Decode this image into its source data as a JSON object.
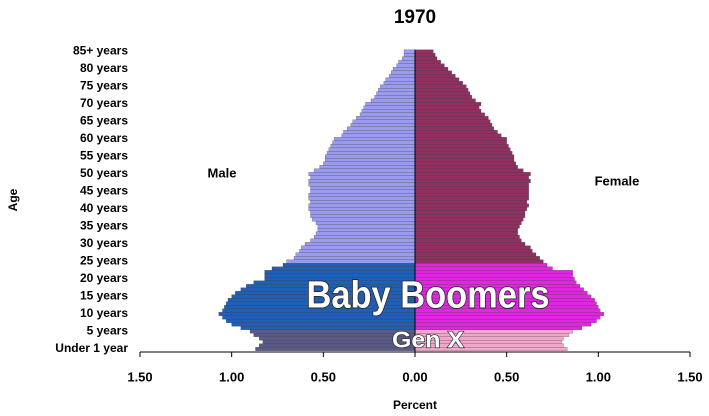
{
  "chart_data": {
    "type": "pyramid",
    "title": "1970",
    "x_label": "Percent",
    "y_label": "Age",
    "categories": [
      "Under 1 year",
      null,
      null,
      null,
      null,
      "5 years",
      null,
      null,
      null,
      null,
      "10 years",
      null,
      null,
      null,
      null,
      "15 years",
      null,
      null,
      null,
      null,
      "20 years",
      null,
      null,
      null,
      null,
      "25 years",
      null,
      null,
      null,
      null,
      "30 years",
      null,
      null,
      null,
      null,
      "35 years",
      null,
      null,
      null,
      null,
      "40 years",
      null,
      null,
      null,
      null,
      "45 years",
      null,
      null,
      null,
      null,
      "50 years",
      null,
      null,
      null,
      null,
      "55 years",
      null,
      null,
      null,
      null,
      "60 years",
      null,
      null,
      null,
      null,
      "65 years",
      null,
      null,
      null,
      null,
      "70 years",
      null,
      null,
      null,
      null,
      "75 years",
      null,
      null,
      null,
      null,
      "80 years",
      null,
      null,
      null,
      null,
      "85+ years"
    ],
    "series": [
      {
        "name": "Male",
        "side": "left",
        "color": "#9a9aee",
        "values": [
          0.87,
          0.85,
          0.83,
          0.85,
          0.88,
          0.9,
          0.95,
          1.0,
          1.03,
          1.05,
          1.07,
          1.05,
          1.04,
          1.03,
          1.02,
          1.0,
          0.98,
          0.95,
          0.92,
          0.88,
          0.82,
          0.82,
          0.82,
          0.78,
          0.72,
          0.7,
          0.66,
          0.65,
          0.63,
          0.62,
          0.6,
          0.57,
          0.55,
          0.54,
          0.53,
          0.53,
          0.54,
          0.56,
          0.57,
          0.57,
          0.58,
          0.58,
          0.57,
          0.58,
          0.58,
          0.57,
          0.57,
          0.58,
          0.58,
          0.57,
          0.58,
          0.55,
          0.52,
          0.5,
          0.49,
          0.49,
          0.48,
          0.47,
          0.46,
          0.45,
          0.44,
          0.4,
          0.39,
          0.37,
          0.35,
          0.34,
          0.32,
          0.3,
          0.29,
          0.28,
          0.27,
          0.24,
          0.22,
          0.21,
          0.2,
          0.19,
          0.17,
          0.16,
          0.14,
          0.13,
          0.12,
          0.1,
          0.09,
          0.07,
          0.06,
          0.06
        ]
      },
      {
        "name": "Female",
        "side": "right",
        "color": "#903060",
        "values": [
          0.83,
          0.81,
          0.8,
          0.81,
          0.84,
          0.86,
          0.91,
          0.96,
          0.99,
          1.01,
          1.03,
          1.01,
          1.0,
          0.99,
          0.98,
          0.96,
          0.94,
          0.92,
          0.9,
          0.88,
          0.87,
          0.86,
          0.86,
          0.75,
          0.72,
          0.7,
          0.68,
          0.66,
          0.64,
          0.63,
          0.6,
          0.58,
          0.57,
          0.56,
          0.56,
          0.57,
          0.58,
          0.59,
          0.6,
          0.6,
          0.61,
          0.62,
          0.61,
          0.62,
          0.62,
          0.62,
          0.62,
          0.62,
          0.63,
          0.62,
          0.63,
          0.59,
          0.56,
          0.55,
          0.54,
          0.54,
          0.53,
          0.52,
          0.51,
          0.5,
          0.5,
          0.47,
          0.45,
          0.43,
          0.42,
          0.41,
          0.4,
          0.38,
          0.36,
          0.35,
          0.36,
          0.33,
          0.31,
          0.3,
          0.29,
          0.28,
          0.26,
          0.24,
          0.22,
          0.2,
          0.18,
          0.16,
          0.14,
          0.12,
          0.11,
          0.1
        ]
      }
    ],
    "generations": [
      {
        "text": "Gen X",
        "start": 0,
        "end": 5,
        "colors": [
          "#5a5a86",
          "#f2a6cc"
        ],
        "size": "small"
      },
      {
        "text": "Baby Boomers",
        "start": 6,
        "end": 24,
        "colors": [
          "#1f5fb5",
          "#e026e0"
        ],
        "size": "large"
      }
    ],
    "xlim": [
      -1.5,
      1.5
    ],
    "xticks": [
      {
        "value": -1.5,
        "label": "1.50"
      },
      {
        "value": -1.0,
        "label": "1.00"
      },
      {
        "value": -0.5,
        "label": "0.50"
      },
      {
        "value": 0,
        "label": "0.00"
      },
      {
        "value": 0.5,
        "label": "0.50"
      },
      {
        "value": 1.0,
        "label": "1.00"
      },
      {
        "value": 1.5,
        "label": "1.50"
      }
    ]
  }
}
